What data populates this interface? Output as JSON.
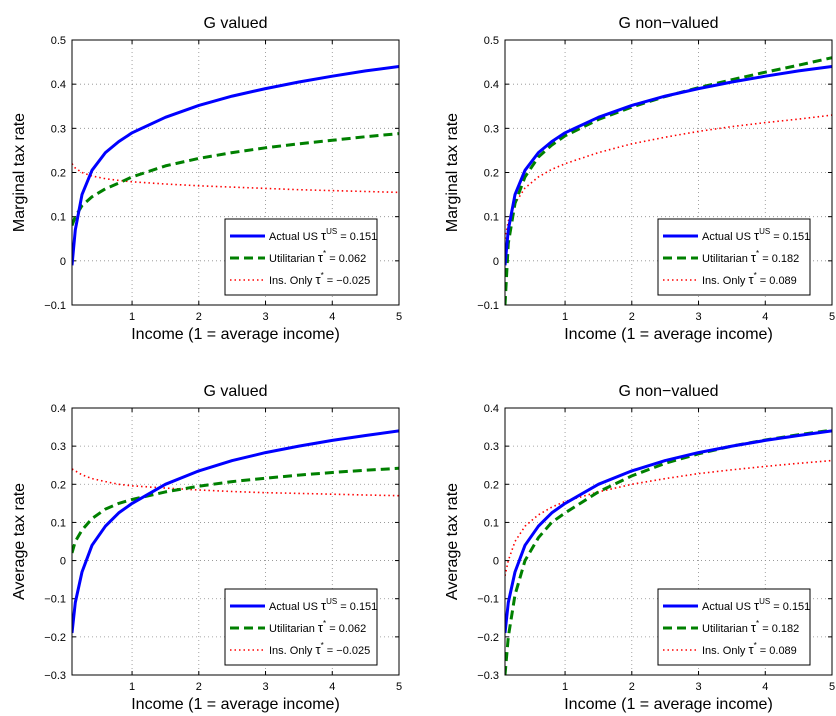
{
  "chart_data": [
    {
      "type": "line",
      "title": "G valued",
      "xlabel": "Income (1 = average income)",
      "ylabel": "Marginal tax rate",
      "xlim": [
        0.1,
        5
      ],
      "ylim": [
        -0.1,
        0.5
      ],
      "xticks": [
        "1",
        "2",
        "3",
        "4",
        "5"
      ],
      "yticks": [
        "−0.1",
        "0",
        "0.1",
        "0.2",
        "0.3",
        "0.4",
        "0.5"
      ],
      "grid": true,
      "legend_position": "lower-right",
      "series": [
        {
          "name": "Actual US",
          "symbol": "τ",
          "sup": "US",
          "value": "= 0.151",
          "color": "#0000ff",
          "style": "solid",
          "x": [
            0.1,
            0.15,
            0.25,
            0.4,
            0.6,
            0.8,
            1,
            1.5,
            2,
            2.5,
            3,
            3.5,
            4,
            4.5,
            5
          ],
          "y": [
            -0.01,
            0.07,
            0.15,
            0.205,
            0.245,
            0.27,
            0.29,
            0.325,
            0.352,
            0.373,
            0.39,
            0.405,
            0.418,
            0.43,
            0.44
          ]
        },
        {
          "name": "Utilitarian",
          "symbol": "τ",
          "sup": "*",
          "value": "= 0.062",
          "color": "#008000",
          "style": "dashed",
          "x": [
            0.1,
            0.15,
            0.25,
            0.4,
            0.6,
            0.8,
            1,
            1.5,
            2,
            2.5,
            3,
            3.5,
            4,
            4.5,
            5
          ],
          "y": [
            0.08,
            0.1,
            0.125,
            0.145,
            0.163,
            0.176,
            0.19,
            0.215,
            0.232,
            0.245,
            0.256,
            0.265,
            0.273,
            0.281,
            0.288
          ]
        },
        {
          "name": "Ins. Only",
          "symbol": "τ",
          "sup": "*",
          "value": "= −0.025",
          "color": "#ff0000",
          "style": "dotted",
          "x": [
            0.1,
            0.15,
            0.25,
            0.4,
            0.6,
            0.8,
            1,
            1.5,
            2,
            2.5,
            3,
            3.5,
            4,
            4.5,
            5
          ],
          "y": [
            0.22,
            0.21,
            0.2,
            0.192,
            0.186,
            0.182,
            0.179,
            0.174,
            0.17,
            0.167,
            0.164,
            0.161,
            0.159,
            0.157,
            0.155
          ]
        }
      ]
    },
    {
      "type": "line",
      "title": "G non−valued",
      "xlabel": "Income (1 = average income)",
      "ylabel": "Marginal tax rate",
      "xlim": [
        0.1,
        5
      ],
      "ylim": [
        -0.1,
        0.5
      ],
      "xticks": [
        "1",
        "2",
        "3",
        "4",
        "5"
      ],
      "yticks": [
        "−0.1",
        "0",
        "0.1",
        "0.2",
        "0.3",
        "0.4",
        "0.5"
      ],
      "grid": true,
      "legend_position": "lower-right",
      "series": [
        {
          "name": "Actual US",
          "symbol": "τ",
          "sup": "US",
          "value": "= 0.151",
          "color": "#0000ff",
          "style": "solid",
          "x": [
            0.1,
            0.15,
            0.25,
            0.4,
            0.6,
            0.8,
            1,
            1.5,
            2,
            2.5,
            3,
            3.5,
            4,
            4.5,
            5
          ],
          "y": [
            -0.01,
            0.07,
            0.15,
            0.205,
            0.245,
            0.27,
            0.29,
            0.325,
            0.352,
            0.373,
            0.39,
            0.405,
            0.418,
            0.43,
            0.44
          ]
        },
        {
          "name": "Utilitarian",
          "symbol": "τ",
          "sup": "*",
          "value": "= 0.182",
          "color": "#008000",
          "style": "dashed",
          "x": [
            0.1,
            0.15,
            0.25,
            0.4,
            0.6,
            0.8,
            1,
            1.5,
            2,
            2.5,
            3,
            3.5,
            4,
            4.5,
            5
          ],
          "y": [
            -0.1,
            0.04,
            0.13,
            0.19,
            0.235,
            0.262,
            0.283,
            0.32,
            0.348,
            0.372,
            0.392,
            0.41,
            0.427,
            0.443,
            0.46
          ]
        },
        {
          "name": "Ins. Only",
          "symbol": "τ",
          "sup": "*",
          "value": "= 0.089",
          "color": "#ff0000",
          "style": "dotted",
          "x": [
            0.1,
            0.15,
            0.25,
            0.4,
            0.6,
            0.8,
            1,
            1.5,
            2,
            2.5,
            3,
            3.5,
            4,
            4.5,
            5
          ],
          "y": [
            0.05,
            0.09,
            0.13,
            0.165,
            0.19,
            0.207,
            0.22,
            0.245,
            0.265,
            0.28,
            0.293,
            0.304,
            0.313,
            0.321,
            0.33
          ]
        }
      ]
    },
    {
      "type": "line",
      "title": "G valued",
      "xlabel": "Income (1 = average income)",
      "ylabel": "Average tax rate",
      "xlim": [
        0.1,
        5
      ],
      "ylim": [
        -0.3,
        0.4
      ],
      "xticks": [
        "1",
        "2",
        "3",
        "4",
        "5"
      ],
      "yticks": [
        "−0.3",
        "−0.2",
        "−0.1",
        "0",
        "0.1",
        "0.2",
        "0.3",
        "0.4"
      ],
      "grid": true,
      "legend_position": "lower-right",
      "series": [
        {
          "name": "Actual US",
          "symbol": "τ",
          "sup": "US",
          "value": "= 0.151",
          "color": "#0000ff",
          "style": "solid",
          "x": [
            0.1,
            0.15,
            0.25,
            0.4,
            0.6,
            0.8,
            1,
            1.5,
            2,
            2.5,
            3,
            3.5,
            4,
            4.5,
            5
          ],
          "y": [
            -0.19,
            -0.11,
            -0.03,
            0.04,
            0.09,
            0.125,
            0.15,
            0.2,
            0.235,
            0.262,
            0.283,
            0.3,
            0.315,
            0.328,
            0.34
          ]
        },
        {
          "name": "Utilitarian",
          "symbol": "τ",
          "sup": "*",
          "value": "= 0.062",
          "color": "#008000",
          "style": "dashed",
          "x": [
            0.1,
            0.15,
            0.25,
            0.4,
            0.6,
            0.8,
            1,
            1.5,
            2,
            2.5,
            3,
            3.5,
            4,
            4.5,
            5
          ],
          "y": [
            0.02,
            0.05,
            0.08,
            0.11,
            0.135,
            0.15,
            0.16,
            0.18,
            0.195,
            0.207,
            0.216,
            0.224,
            0.231,
            0.237,
            0.242
          ]
        },
        {
          "name": "Ins. Only",
          "symbol": "τ",
          "sup": "*",
          "value": "= −0.025",
          "color": "#ff0000",
          "style": "dotted",
          "x": [
            0.1,
            0.15,
            0.25,
            0.4,
            0.6,
            0.8,
            1,
            1.5,
            2,
            2.5,
            3,
            3.5,
            4,
            4.5,
            5
          ],
          "y": [
            0.24,
            0.235,
            0.225,
            0.215,
            0.207,
            0.2,
            0.196,
            0.19,
            0.185,
            0.181,
            0.178,
            0.176,
            0.174,
            0.172,
            0.17
          ]
        }
      ]
    },
    {
      "type": "line",
      "title": "G non−valued",
      "xlabel": "Income (1 = average income)",
      "ylabel": "Average tax rate",
      "xlim": [
        0.1,
        5
      ],
      "ylim": [
        -0.3,
        0.4
      ],
      "xticks": [
        "1",
        "2",
        "3",
        "4",
        "5"
      ],
      "yticks": [
        "−0.3",
        "−0.2",
        "−0.1",
        "0",
        "0.1",
        "0.2",
        "0.3",
        "0.4"
      ],
      "grid": true,
      "legend_position": "lower-right",
      "series": [
        {
          "name": "Actual US",
          "symbol": "τ",
          "sup": "US",
          "value": "= 0.151",
          "color": "#0000ff",
          "style": "solid",
          "x": [
            0.1,
            0.15,
            0.25,
            0.4,
            0.6,
            0.8,
            1,
            1.5,
            2,
            2.5,
            3,
            3.5,
            4,
            4.5,
            5
          ],
          "y": [
            -0.19,
            -0.11,
            -0.03,
            0.04,
            0.09,
            0.125,
            0.15,
            0.2,
            0.235,
            0.262,
            0.283,
            0.3,
            0.315,
            0.328,
            0.34
          ]
        },
        {
          "name": "Utilitarian",
          "symbol": "τ",
          "sup": "*",
          "value": "= 0.182",
          "color": "#008000",
          "style": "dashed",
          "x": [
            0.1,
            0.15,
            0.25,
            0.4,
            0.6,
            0.8,
            1,
            1.5,
            2,
            2.5,
            3,
            3.5,
            4,
            4.5,
            5
          ],
          "y": [
            -0.3,
            -0.2,
            -0.09,
            0.0,
            0.06,
            0.1,
            0.125,
            0.18,
            0.222,
            0.255,
            0.28,
            0.3,
            0.316,
            0.33,
            0.342
          ]
        },
        {
          "name": "Ins. Only",
          "symbol": "τ",
          "sup": "*",
          "value": "= 0.089",
          "color": "#ff0000",
          "style": "dotted",
          "x": [
            0.1,
            0.15,
            0.25,
            0.4,
            0.6,
            0.8,
            1,
            1.5,
            2,
            2.5,
            3,
            3.5,
            4,
            4.5,
            5
          ],
          "y": [
            -0.04,
            0.0,
            0.05,
            0.09,
            0.12,
            0.14,
            0.155,
            0.18,
            0.2,
            0.215,
            0.228,
            0.238,
            0.247,
            0.255,
            0.262
          ]
        }
      ]
    }
  ]
}
